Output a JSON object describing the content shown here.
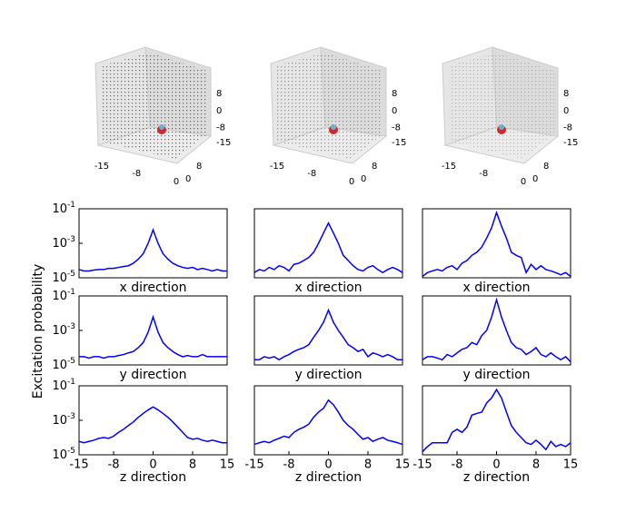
{
  "ylabel": "Excitation probability",
  "cubes": [
    {
      "xticks": [
        -15,
        -8,
        0
      ],
      "yticks": [
        8,
        0
      ],
      "zticks": [
        8,
        0,
        -8,
        -15
      ]
    },
    {
      "xticks": [
        -15,
        -8,
        0
      ],
      "yticks": [
        8,
        0
      ],
      "zticks": [
        8,
        0,
        -8,
        -15
      ]
    },
    {
      "xticks": [
        -15,
        -8,
        0
      ],
      "yticks": [
        8,
        0
      ],
      "zticks": [
        8,
        0,
        -8,
        -15
      ]
    }
  ],
  "chart_data": [
    {
      "type": "line",
      "xlabel": "x direction",
      "xlim": [
        -15,
        15
      ],
      "ylim": [
        1e-05,
        0.1
      ],
      "log_y": true,
      "color": "#0000ff",
      "yticks": [
        {
          "value": 1e-05,
          "label": "10^-5"
        },
        {
          "value": 0.001,
          "label": "10^-3"
        },
        {
          "value": 0.1,
          "label": "10^-1"
        }
      ],
      "x": [
        -15,
        -14,
        -13,
        -12,
        -11,
        -10,
        -9,
        -8,
        -7,
        -6,
        -5,
        -4,
        -3,
        -2,
        -1,
        0,
        1,
        2,
        3,
        4,
        5,
        6,
        7,
        8,
        9,
        10,
        11,
        12,
        13,
        14,
        15
      ],
      "values": [
        3e-05,
        2.5e-05,
        2.5e-05,
        2.8e-05,
        3e-05,
        3e-05,
        3.5e-05,
        3.5e-05,
        4e-05,
        4.5e-05,
        5e-05,
        7e-05,
        0.00012,
        0.00025,
        0.001,
        0.006,
        0.001,
        0.00025,
        0.00012,
        7e-05,
        5e-05,
        4e-05,
        3.5e-05,
        4e-05,
        3e-05,
        3.5e-05,
        3e-05,
        2.5e-05,
        3e-05,
        2.5e-05,
        2.5e-05
      ]
    },
    {
      "type": "line",
      "xlabel": "x direction",
      "xlim": [
        -15,
        15
      ],
      "ylim": [
        1e-05,
        0.1
      ],
      "log_y": true,
      "color": "#0000ff",
      "x": [
        -15,
        -14,
        -13,
        -12,
        -11,
        -10,
        -9,
        -8,
        -7,
        -6,
        -5,
        -4,
        -3,
        -2,
        -1,
        0,
        1,
        2,
        3,
        4,
        5,
        6,
        7,
        8,
        9,
        10,
        11,
        12,
        13,
        14,
        15
      ],
      "values": [
        2e-05,
        3e-05,
        2.5e-05,
        4e-05,
        3e-05,
        5e-05,
        4e-05,
        2.5e-05,
        6e-05,
        7e-05,
        0.0001,
        0.00015,
        0.0003,
        0.001,
        0.004,
        0.015,
        0.004,
        0.001,
        0.0002,
        0.0001,
        5e-05,
        3e-05,
        2.5e-05,
        4e-05,
        5e-05,
        3e-05,
        2e-05,
        3e-05,
        4e-05,
        3e-05,
        2e-05
      ]
    },
    {
      "type": "line",
      "xlabel": "x direction",
      "xlim": [
        -15,
        15
      ],
      "ylim": [
        1e-05,
        0.1
      ],
      "log_y": true,
      "color": "#0000ff",
      "x": [
        -15,
        -14,
        -13,
        -12,
        -11,
        -10,
        -9,
        -8,
        -7,
        -6,
        -5,
        -4,
        -3,
        -2,
        -1,
        0,
        1,
        2,
        3,
        4,
        5,
        6,
        7,
        8,
        9,
        10,
        11,
        12,
        13,
        14,
        15
      ],
      "values": [
        1.2e-05,
        2e-05,
        2.5e-05,
        3e-05,
        2.5e-05,
        4e-05,
        5e-05,
        3e-05,
        7e-05,
        0.0001,
        0.0002,
        0.0003,
        0.0006,
        0.002,
        0.008,
        0.06,
        0.01,
        0.002,
        0.0003,
        0.0002,
        0.00015,
        2e-05,
        6e-05,
        3e-05,
        5e-05,
        3e-05,
        2.5e-05,
        2e-05,
        1.5e-05,
        2e-05,
        1.2e-05
      ]
    },
    {
      "type": "line",
      "xlabel": "y direction",
      "xlim": [
        -15,
        15
      ],
      "ylim": [
        1e-05,
        0.1
      ],
      "log_y": true,
      "color": "#0000ff",
      "yticks": [
        {
          "value": 1e-05,
          "label": "10^-5"
        },
        {
          "value": 0.001,
          "label": "10^-3"
        },
        {
          "value": 0.1,
          "label": "10^-1"
        }
      ],
      "x": [
        -15,
        -14,
        -13,
        -12,
        -11,
        -10,
        -9,
        -8,
        -7,
        -6,
        -5,
        -4,
        -3,
        -2,
        -1,
        0,
        1,
        2,
        3,
        4,
        5,
        6,
        7,
        8,
        9,
        10,
        11,
        12,
        13,
        14,
        15
      ],
      "values": [
        3e-05,
        3e-05,
        2.5e-05,
        3e-05,
        3e-05,
        2.5e-05,
        3e-05,
        3e-05,
        3.5e-05,
        4e-05,
        5e-05,
        6e-05,
        0.0001,
        0.0002,
        0.0008,
        0.006,
        0.0008,
        0.0002,
        0.0001,
        6e-05,
        4e-05,
        3e-05,
        3.5e-05,
        3e-05,
        3e-05,
        4e-05,
        3e-05,
        3e-05,
        3e-05,
        3e-05,
        3e-05
      ]
    },
    {
      "type": "line",
      "xlabel": "y direction",
      "xlim": [
        -15,
        15
      ],
      "ylim": [
        1e-05,
        0.1
      ],
      "log_y": true,
      "color": "#0000ff",
      "x": [
        -15,
        -14,
        -13,
        -12,
        -11,
        -10,
        -9,
        -8,
        -7,
        -6,
        -5,
        -4,
        -3,
        -2,
        -1,
        0,
        1,
        2,
        3,
        4,
        5,
        6,
        7,
        8,
        9,
        10,
        11,
        12,
        13,
        14,
        15
      ],
      "values": [
        2e-05,
        2e-05,
        3e-05,
        2.5e-05,
        3e-05,
        2e-05,
        3e-05,
        4e-05,
        6e-05,
        8e-05,
        0.0001,
        0.00015,
        0.0004,
        0.001,
        0.003,
        0.015,
        0.003,
        0.001,
        0.0004,
        0.00015,
        0.0001,
        6e-05,
        8e-05,
        3e-05,
        5e-05,
        4e-05,
        3e-05,
        4e-05,
        3e-05,
        2e-05,
        2e-05
      ]
    },
    {
      "type": "line",
      "xlabel": "y direction",
      "xlim": [
        -15,
        15
      ],
      "ylim": [
        1e-05,
        0.1
      ],
      "log_y": true,
      "color": "#0000ff",
      "x": [
        -15,
        -14,
        -13,
        -12,
        -11,
        -10,
        -9,
        -8,
        -7,
        -6,
        -5,
        -4,
        -3,
        -2,
        -1,
        0,
        1,
        2,
        3,
        4,
        5,
        6,
        7,
        8,
        9,
        10,
        11,
        12,
        13,
        14,
        15
      ],
      "values": [
        2e-05,
        3e-05,
        3e-05,
        2.5e-05,
        2e-05,
        4e-05,
        3e-05,
        5e-05,
        8e-05,
        0.0001,
        0.0002,
        0.00015,
        0.0005,
        0.001,
        0.006,
        0.06,
        0.006,
        0.001,
        0.0002,
        0.0001,
        8e-05,
        4e-05,
        6e-05,
        0.0001,
        4e-05,
        3e-05,
        5e-05,
        3e-05,
        2e-05,
        3e-05,
        1.5e-05
      ]
    },
    {
      "type": "line",
      "xlabel": "z direction",
      "xlim": [
        -15,
        15
      ],
      "ylim": [
        1e-05,
        0.1
      ],
      "log_y": true,
      "color": "#0000ff",
      "xticks": [
        -15,
        -8,
        0,
        8,
        15
      ],
      "yticks": [
        {
          "value": 1e-05,
          "label": "10^-5"
        },
        {
          "value": 0.001,
          "label": "10^-3"
        },
        {
          "value": 0.1,
          "label": "10^-1"
        }
      ],
      "x": [
        -15,
        -14,
        -13,
        -12,
        -11,
        -10,
        -9,
        -8,
        -7,
        -6,
        -5,
        -4,
        -3,
        -2,
        -1,
        0,
        1,
        2,
        3,
        4,
        5,
        6,
        7,
        8,
        9,
        10,
        11,
        12,
        13,
        14,
        15
      ],
      "values": [
        6e-05,
        5e-05,
        6e-05,
        7e-05,
        9e-05,
        0.0001,
        9e-05,
        0.00012,
        0.0002,
        0.0003,
        0.0005,
        0.0008,
        0.0015,
        0.0025,
        0.004,
        0.006,
        0.004,
        0.0025,
        0.0015,
        0.0008,
        0.0004,
        0.0002,
        0.0001,
        8e-05,
        9e-05,
        7e-05,
        6e-05,
        7e-05,
        6e-05,
        5e-05,
        5e-05
      ]
    },
    {
      "type": "line",
      "xlabel": "z direction",
      "xlim": [
        -15,
        15
      ],
      "ylim": [
        1e-05,
        0.1
      ],
      "log_y": true,
      "color": "#0000ff",
      "xticks": [
        -15,
        -8,
        0,
        8,
        15
      ],
      "x": [
        -15,
        -14,
        -13,
        -12,
        -11,
        -10,
        -9,
        -8,
        -7,
        -6,
        -5,
        -4,
        -3,
        -2,
        -1,
        0,
        1,
        2,
        3,
        4,
        5,
        6,
        7,
        8,
        9,
        10,
        11,
        12,
        13,
        14,
        15
      ],
      "values": [
        4e-05,
        5e-05,
        6e-05,
        5e-05,
        7e-05,
        9e-05,
        0.00012,
        0.0001,
        0.0002,
        0.0003,
        0.0004,
        0.0006,
        0.0015,
        0.003,
        0.005,
        0.015,
        0.008,
        0.003,
        0.001,
        0.0005,
        0.0003,
        0.00015,
        8e-05,
        0.0001,
        6e-05,
        8e-05,
        0.0001,
        7e-05,
        6e-05,
        5e-05,
        4e-05
      ]
    },
    {
      "type": "line",
      "xlabel": "z direction",
      "xlim": [
        -15,
        15
      ],
      "ylim": [
        1e-05,
        0.1
      ],
      "log_y": true,
      "color": "#0000ff",
      "xticks": [
        -15,
        -8,
        0,
        8,
        15
      ],
      "x": [
        -15,
        -14,
        -13,
        -12,
        -11,
        -10,
        -9,
        -8,
        -7,
        -6,
        -5,
        -4,
        -3,
        -2,
        -1,
        0,
        1,
        2,
        3,
        4,
        5,
        6,
        7,
        8,
        9,
        10,
        11,
        12,
        13,
        14,
        15
      ],
      "values": [
        1.5e-05,
        3e-05,
        5e-05,
        5e-05,
        5e-05,
        5e-05,
        0.0002,
        0.0003,
        0.0002,
        0.0004,
        0.002,
        0.0025,
        0.003,
        0.01,
        0.02,
        0.06,
        0.02,
        0.003,
        0.0005,
        0.0002,
        0.0001,
        5e-05,
        4e-05,
        7e-05,
        4e-05,
        2e-05,
        6e-05,
        3e-05,
        4e-05,
        3e-05,
        5e-05
      ]
    }
  ]
}
